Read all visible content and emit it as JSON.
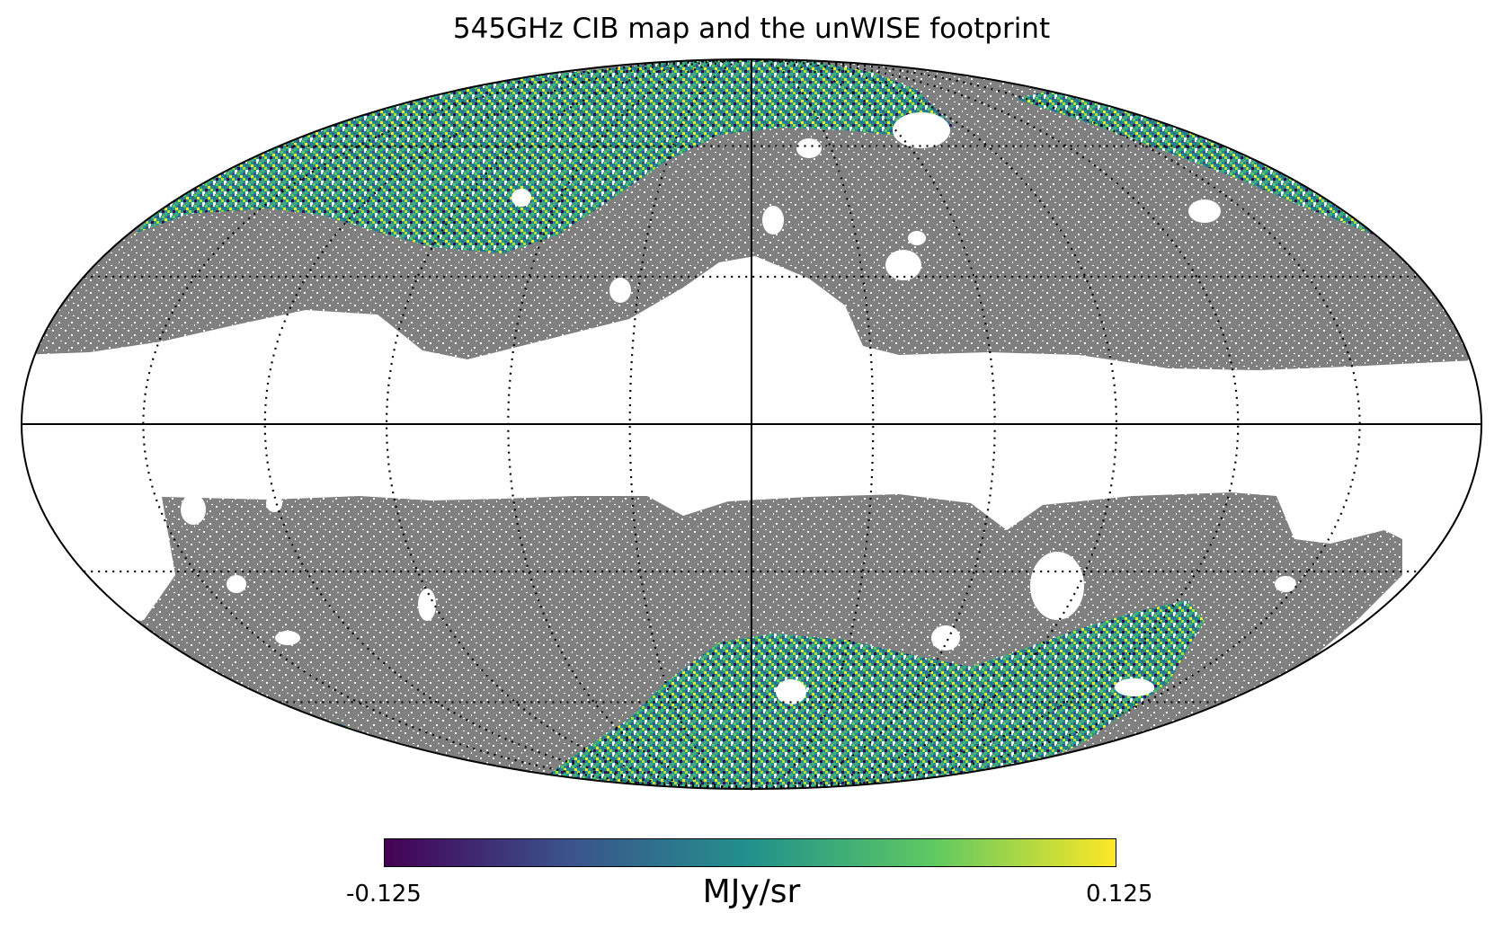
{
  "title": "545GHz CIB map and the unWISE footprint",
  "projection": "mollweide",
  "graticule": {
    "meridian_step_deg": 30,
    "parallel_lats_deg": [
      -60,
      -30,
      30,
      60
    ],
    "line_style": "dotted",
    "central_axes": "solid"
  },
  "colors": {
    "masked_gray": "#808080",
    "background": "#ffffff",
    "outline": "#000000"
  },
  "colorbar": {
    "colormap": "viridis",
    "colormap_stops": [
      "#440154",
      "#3b528b",
      "#21918c",
      "#5ec962",
      "#fde725"
    ],
    "min_label": "-0.125",
    "max_label": "0.125",
    "unit": "MJy/sr"
  }
}
